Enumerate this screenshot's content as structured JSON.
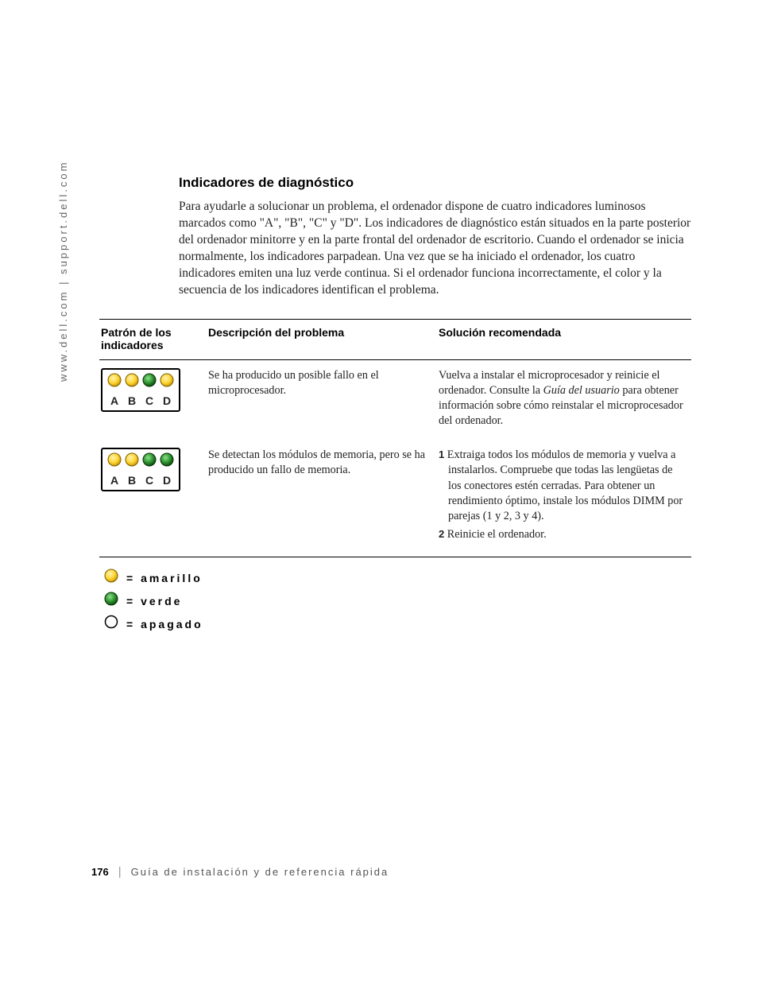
{
  "sidebar_url": "www.dell.com | support.dell.com",
  "section_title": "Indicadores de diagnóstico",
  "intro_text": "Para ayudarle a solucionar un problema, el ordenador dispone de cuatro indicadores luminosos marcados como \"A\", \"B\", \"C\" y \"D\". Los indicadores de diagnóstico están situados en la parte posterior del ordenador minitorre y en la parte frontal del ordenador de escritorio. Cuando el ordenador se inicia normalmente, los indicadores parpadean. Una vez que se ha iniciado el ordenador, los cuatro indicadores emiten una luz verde continua. Si el ordenador funciona incorrectamente, el color y la secuencia de los indicadores identifican el problema.",
  "table": {
    "headers": {
      "pattern": "Patrón de los indicadores",
      "description": "Descripción del problema",
      "solution": "Solución recomendada"
    },
    "rows": [
      {
        "leds": [
          "yellow",
          "yellow",
          "green",
          "yellow"
        ],
        "letters": [
          "A",
          "B",
          "C",
          "D"
        ],
        "description": "Se ha producido un posible fallo en el microprocesador.",
        "solution_plain_pre": "Vuelva a instalar el microprocesador y reinicie el ordenador. Consulte la ",
        "solution_italic": "Guía del usuario",
        "solution_plain_post": " para obtener información sobre cómo reinstalar el microprocesador del ordenador.",
        "solution_steps": []
      },
      {
        "leds": [
          "yellow",
          "yellow",
          "green",
          "green"
        ],
        "letters": [
          "A",
          "B",
          "C",
          "D"
        ],
        "description": "Se detectan los módulos de memoria, pero se ha producido un fallo de memoria.",
        "solution_plain_pre": "",
        "solution_italic": "",
        "solution_plain_post": "",
        "solution_steps": [
          {
            "num": "1",
            "text": " Extraiga todos los módulos de memoria y vuelva a instalarlos. Compruebe que todas las lengüetas de los conectores estén cerradas. Para obtener un rendimiento óptimo, instale los módulos DIMM por parejas (1 y 2, 3 y 4)."
          },
          {
            "num": "2",
            "text": " Reinicie el ordenador."
          }
        ]
      }
    ]
  },
  "legend": {
    "items": [
      {
        "color": "yellow",
        "label": "= amarillo"
      },
      {
        "color": "green",
        "label": "= verde"
      },
      {
        "color": "off",
        "label": "= apagado"
      }
    ]
  },
  "led_colors": {
    "yellow_fill": "#ffd633",
    "yellow_shadow": "#cc9900",
    "green_fill": "#339933",
    "green_shadow": "#0d4d0d",
    "off_fill": "#ffffff",
    "off_stroke": "#000000"
  },
  "footer": {
    "page_number": "176",
    "title": "Guía de instalación y de referencia rápida"
  }
}
